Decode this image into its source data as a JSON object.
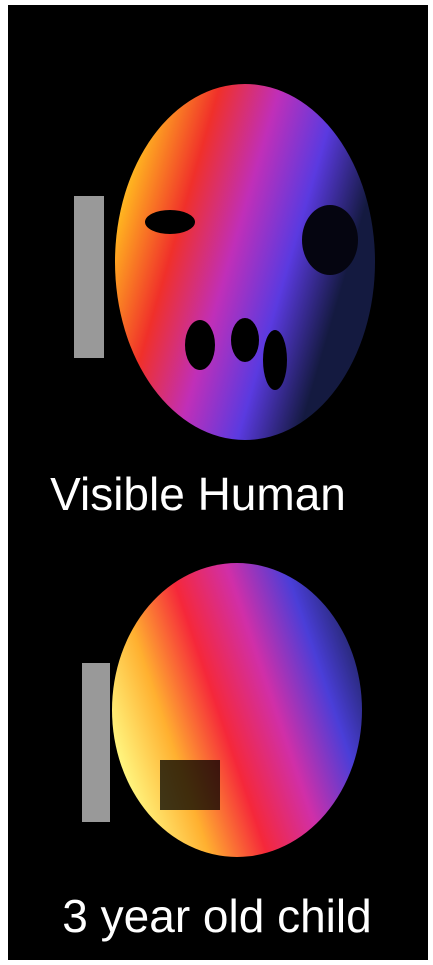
{
  "panels": [
    {
      "label": "Visible Human"
    },
    {
      "label": "3 year old child"
    }
  ]
}
